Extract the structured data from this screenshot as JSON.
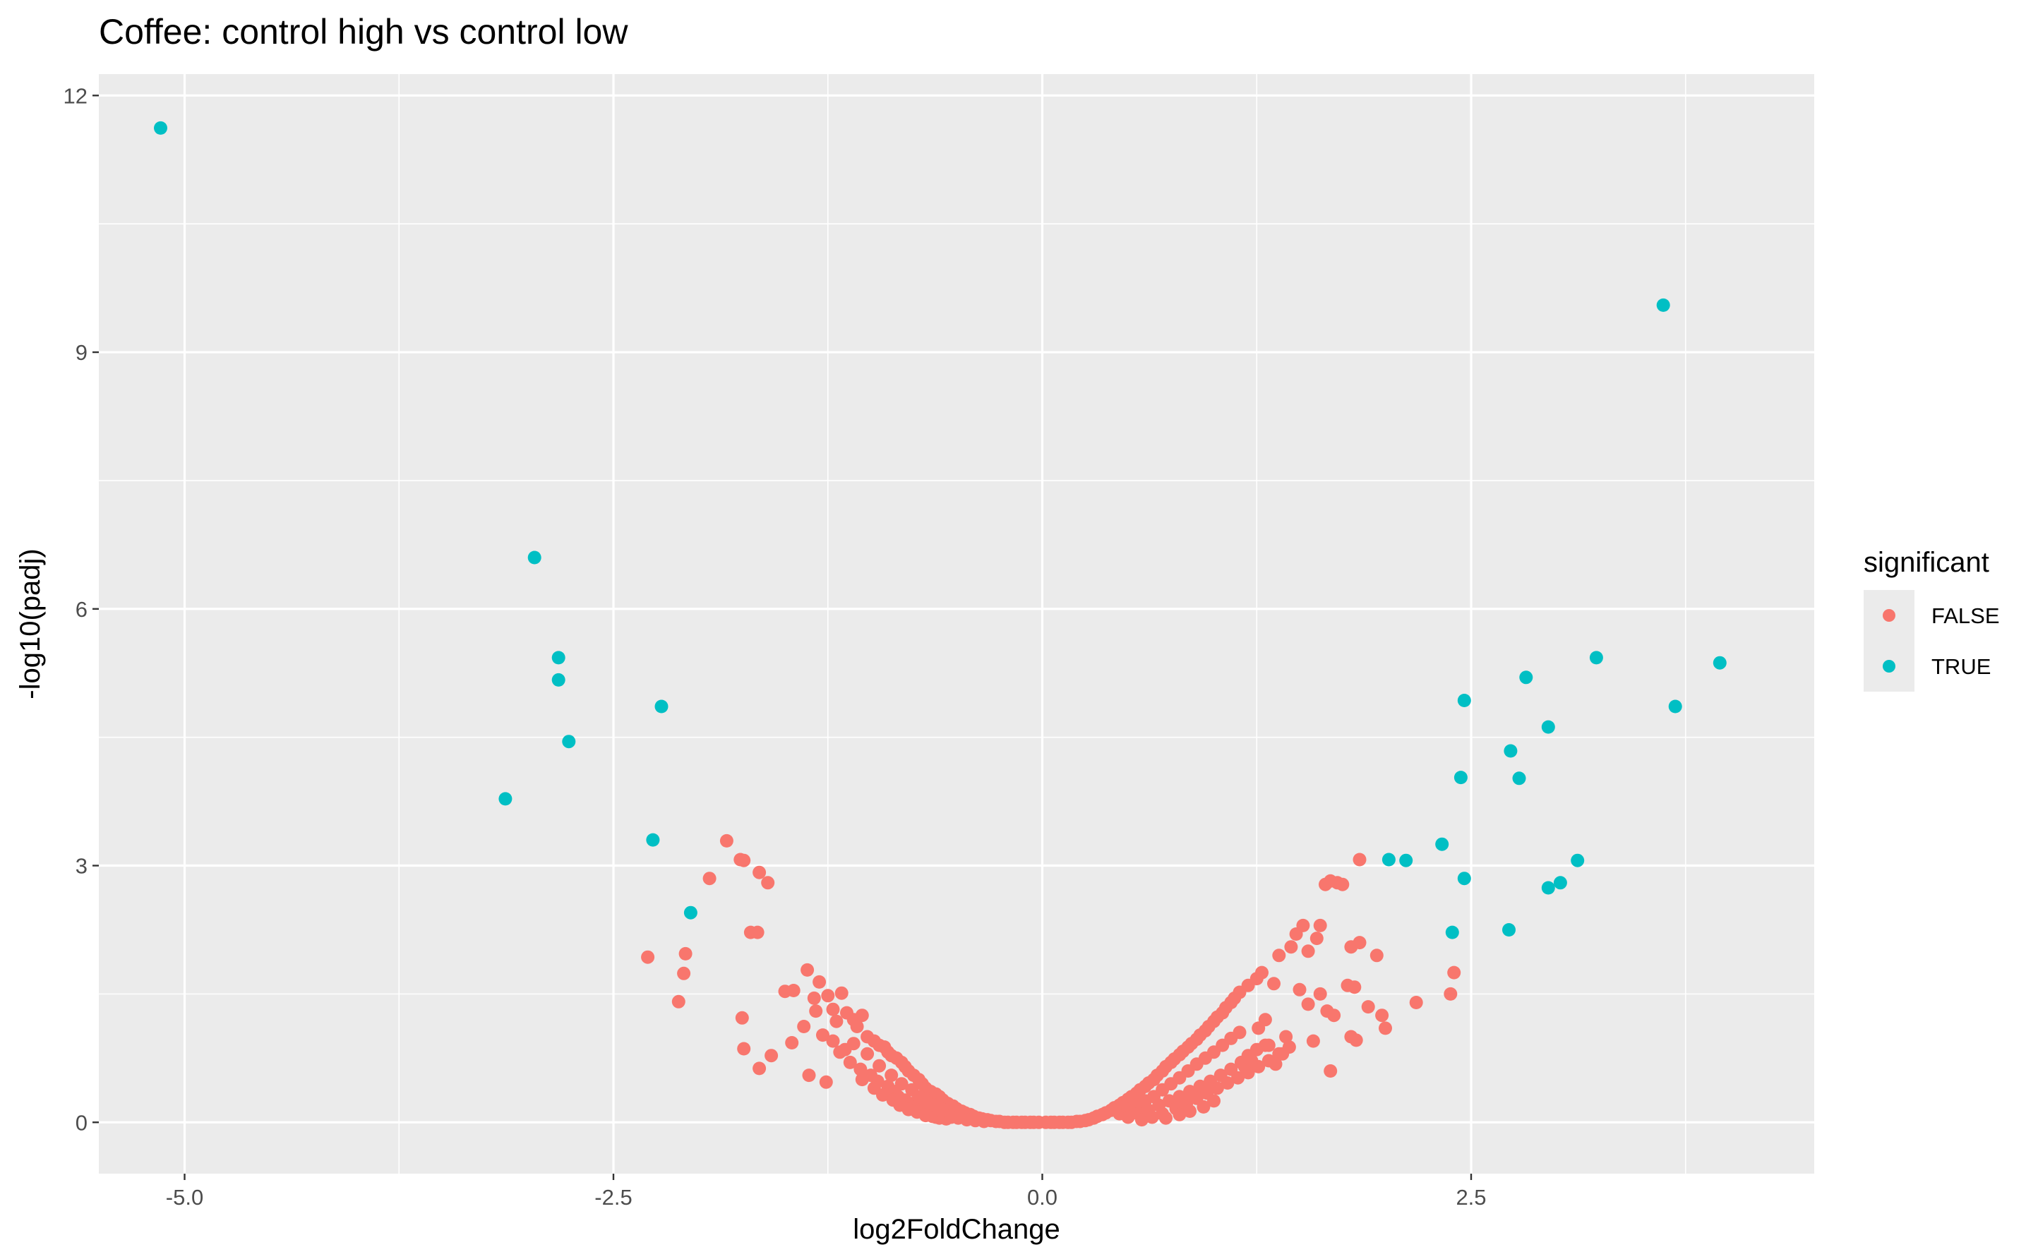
{
  "chart_data": {
    "type": "scatter",
    "title": "Coffee: control high vs control low",
    "xlabel": "log2FoldChange",
    "ylabel": "-log10(padj)",
    "xlim": [
      -5.5,
      4.5
    ],
    "ylim": [
      -0.6,
      12.25
    ],
    "x_ticks": [
      -5.0,
      -2.5,
      0.0,
      2.5
    ],
    "y_ticks": [
      0,
      3,
      6,
      9,
      12
    ],
    "x_tick_labels": [
      "-5.0",
      "-2.5",
      "0.0",
      "2.5"
    ],
    "y_tick_labels": [
      "0",
      "3",
      "6",
      "9",
      "12"
    ],
    "grid": true,
    "panel_background": "#ebebeb",
    "legend": {
      "title": "significant",
      "position": "right",
      "entries": [
        {
          "label": "FALSE",
          "color": "#f8766d"
        },
        {
          "label": "TRUE",
          "color": "#00bfc4"
        }
      ]
    },
    "series": [
      {
        "name": "TRUE",
        "color": "#00bfc4",
        "points": [
          [
            -5.14,
            11.62
          ],
          [
            -2.96,
            6.6
          ],
          [
            -2.82,
            5.43
          ],
          [
            -2.82,
            5.17
          ],
          [
            -2.76,
            4.45
          ],
          [
            -3.13,
            3.78
          ],
          [
            -2.22,
            4.86
          ],
          [
            -2.27,
            3.3
          ],
          [
            -2.05,
            2.45
          ],
          [
            3.62,
            9.55
          ],
          [
            3.95,
            5.37
          ],
          [
            3.23,
            5.43
          ],
          [
            2.82,
            5.2
          ],
          [
            3.69,
            4.86
          ],
          [
            2.46,
            4.93
          ],
          [
            2.95,
            4.62
          ],
          [
            2.73,
            4.34
          ],
          [
            2.44,
            4.03
          ],
          [
            2.78,
            4.02
          ],
          [
            2.33,
            3.25
          ],
          [
            2.02,
            3.07
          ],
          [
            2.12,
            3.06
          ],
          [
            3.12,
            3.06
          ],
          [
            2.46,
            2.85
          ],
          [
            3.02,
            2.8
          ],
          [
            2.95,
            2.74
          ],
          [
            2.39,
            2.22
          ],
          [
            2.72,
            2.25
          ]
        ]
      },
      {
        "name": "FALSE",
        "color": "#f8766d",
        "points": [
          [
            -1.84,
            3.29
          ],
          [
            -1.76,
            3.07
          ],
          [
            -1.74,
            3.06
          ],
          [
            -1.65,
            2.92
          ],
          [
            -1.6,
            2.8
          ],
          [
            -1.94,
            2.85
          ],
          [
            -1.7,
            2.22
          ],
          [
            -1.66,
            2.22
          ],
          [
            -2.08,
            1.97
          ],
          [
            -2.09,
            1.74
          ],
          [
            -2.3,
            1.93
          ],
          [
            -2.12,
            1.41
          ],
          [
            -1.75,
            1.22
          ],
          [
            -1.74,
            0.86
          ],
          [
            -1.65,
            0.63
          ],
          [
            -1.58,
            0.78
          ],
          [
            -1.46,
            0.93
          ],
          [
            -1.5,
            1.53
          ],
          [
            -1.45,
            1.54
          ],
          [
            -1.37,
            1.78
          ],
          [
            -1.3,
            1.64
          ],
          [
            -1.33,
            1.45
          ],
          [
            -1.32,
            1.3
          ],
          [
            -1.39,
            1.12
          ],
          [
            -1.28,
            1.02
          ],
          [
            -1.36,
            0.55
          ],
          [
            -1.26,
            0.47
          ],
          [
            -1.25,
            1.48
          ],
          [
            -1.22,
            1.32
          ],
          [
            -1.2,
            1.18
          ],
          [
            -1.17,
            1.51
          ],
          [
            -1.14,
            1.28
          ],
          [
            -1.1,
            1.2
          ],
          [
            -1.08,
            1.12
          ],
          [
            -1.05,
            1.25
          ],
          [
            -1.02,
            1.0
          ],
          [
            -0.98,
            0.95
          ],
          [
            -0.95,
            0.9
          ],
          [
            -0.92,
            0.88
          ],
          [
            -0.9,
            0.82
          ],
          [
            -0.88,
            0.78
          ],
          [
            -0.85,
            0.75
          ],
          [
            -0.82,
            0.7
          ],
          [
            -0.8,
            0.65
          ],
          [
            -0.78,
            0.6
          ],
          [
            -0.75,
            0.55
          ],
          [
            -0.72,
            0.5
          ],
          [
            -0.7,
            0.45
          ],
          [
            -0.68,
            0.4
          ],
          [
            -0.65,
            0.36
          ],
          [
            -0.62,
            0.33
          ],
          [
            -0.6,
            0.3
          ],
          [
            -0.58,
            0.26
          ],
          [
            -0.55,
            0.22
          ],
          [
            -0.52,
            0.19
          ],
          [
            -0.5,
            0.16
          ],
          [
            -0.47,
            0.13
          ],
          [
            -0.45,
            0.11
          ],
          [
            -0.42,
            0.09
          ],
          [
            -0.4,
            0.07
          ],
          [
            -0.37,
            0.05
          ],
          [
            -0.35,
            0.04
          ],
          [
            -0.32,
            0.03
          ],
          [
            -0.3,
            0.02
          ],
          [
            -0.27,
            0.01
          ],
          [
            -0.25,
            0.01
          ],
          [
            -0.22,
            0.0
          ],
          [
            -0.2,
            0.0
          ],
          [
            -0.17,
            0.0
          ],
          [
            -0.15,
            0.0
          ],
          [
            -0.12,
            0.0
          ],
          [
            -0.1,
            0.0
          ],
          [
            -0.07,
            0.0
          ],
          [
            -0.05,
            0.0
          ],
          [
            -0.02,
            0.0
          ],
          [
            -1.18,
            0.82
          ],
          [
            -1.12,
            0.7
          ],
          [
            -1.06,
            0.62
          ],
          [
            -1.0,
            0.55
          ],
          [
            -0.96,
            0.48
          ],
          [
            -0.9,
            0.42
          ],
          [
            -0.86,
            0.36
          ],
          [
            -0.84,
            0.3
          ],
          [
            -0.8,
            0.26
          ],
          [
            -0.76,
            0.22
          ],
          [
            -0.74,
            0.18
          ],
          [
            -0.7,
            0.14
          ],
          [
            -0.66,
            0.1
          ],
          [
            -0.64,
            0.07
          ],
          [
            -0.6,
            0.05
          ],
          [
            -0.56,
            0.04
          ],
          [
            -1.22,
            0.95
          ],
          [
            -1.15,
            0.85
          ],
          [
            -1.1,
            0.92
          ],
          [
            -1.02,
            0.8
          ],
          [
            -0.95,
            0.66
          ],
          [
            -0.88,
            0.55
          ],
          [
            -0.82,
            0.45
          ],
          [
            -0.76,
            0.38
          ],
          [
            -0.72,
            0.3
          ],
          [
            -0.68,
            0.24
          ],
          [
            -0.63,
            0.2
          ],
          [
            -0.58,
            0.15
          ],
          [
            -0.54,
            0.12
          ],
          [
            -0.48,
            0.08
          ],
          [
            -1.05,
            0.5
          ],
          [
            -0.98,
            0.4
          ],
          [
            -0.93,
            0.32
          ],
          [
            -0.87,
            0.26
          ],
          [
            -0.83,
            0.2
          ],
          [
            -0.78,
            0.15
          ],
          [
            -0.73,
            0.12
          ],
          [
            -0.68,
            0.08
          ],
          [
            -0.62,
            0.06
          ],
          [
            -0.57,
            0.08
          ],
          [
            -0.53,
            0.06
          ],
          [
            -0.49,
            0.05
          ],
          [
            -0.44,
            0.03
          ],
          [
            -0.39,
            0.02
          ],
          [
            -0.34,
            0.01
          ],
          [
            0.02,
            0.0
          ],
          [
            0.05,
            0.0
          ],
          [
            0.07,
            0.0
          ],
          [
            0.1,
            0.0
          ],
          [
            0.12,
            0.0
          ],
          [
            0.15,
            0.0
          ],
          [
            0.17,
            0.0
          ],
          [
            0.2,
            0.01
          ],
          [
            0.22,
            0.01
          ],
          [
            0.25,
            0.02
          ],
          [
            0.27,
            0.03
          ],
          [
            0.3,
            0.05
          ],
          [
            0.32,
            0.07
          ],
          [
            0.35,
            0.09
          ],
          [
            0.37,
            0.11
          ],
          [
            0.4,
            0.14
          ],
          [
            0.42,
            0.17
          ],
          [
            0.45,
            0.2
          ],
          [
            0.47,
            0.23
          ],
          [
            0.5,
            0.27
          ],
          [
            0.52,
            0.3
          ],
          [
            0.55,
            0.34
          ],
          [
            0.57,
            0.38
          ],
          [
            0.6,
            0.42
          ],
          [
            0.62,
            0.46
          ],
          [
            0.65,
            0.5
          ],
          [
            0.67,
            0.55
          ],
          [
            0.7,
            0.6
          ],
          [
            0.72,
            0.65
          ],
          [
            0.75,
            0.7
          ],
          [
            0.77,
            0.74
          ],
          [
            0.8,
            0.79
          ],
          [
            0.82,
            0.83
          ],
          [
            0.85,
            0.88
          ],
          [
            0.87,
            0.92
          ],
          [
            0.9,
            0.97
          ],
          [
            0.92,
            1.02
          ],
          [
            0.95,
            1.07
          ],
          [
            0.97,
            1.12
          ],
          [
            1.0,
            1.18
          ],
          [
            1.02,
            1.23
          ],
          [
            1.05,
            1.28
          ],
          [
            1.07,
            1.34
          ],
          [
            1.1,
            1.4
          ],
          [
            1.12,
            1.45
          ],
          [
            0.45,
            0.1
          ],
          [
            0.5,
            0.15
          ],
          [
            0.55,
            0.2
          ],
          [
            0.6,
            0.25
          ],
          [
            0.65,
            0.3
          ],
          [
            0.7,
            0.38
          ],
          [
            0.75,
            0.45
          ],
          [
            0.8,
            0.52
          ],
          [
            0.85,
            0.6
          ],
          [
            0.9,
            0.68
          ],
          [
            0.95,
            0.75
          ],
          [
            1.0,
            0.82
          ],
          [
            1.05,
            0.9
          ],
          [
            1.1,
            0.98
          ],
          [
            1.15,
            1.05
          ],
          [
            0.5,
            0.06
          ],
          [
            0.56,
            0.1
          ],
          [
            0.62,
            0.14
          ],
          [
            0.68,
            0.2
          ],
          [
            0.74,
            0.25
          ],
          [
            0.8,
            0.3
          ],
          [
            0.86,
            0.36
          ],
          [
            0.92,
            0.42
          ],
          [
            0.98,
            0.48
          ],
          [
            1.04,
            0.55
          ],
          [
            1.1,
            0.62
          ],
          [
            1.16,
            0.7
          ],
          [
            1.2,
            0.78
          ],
          [
            1.25,
            0.85
          ],
          [
            1.3,
            0.9
          ],
          [
            0.58,
            0.03
          ],
          [
            0.64,
            0.06
          ],
          [
            0.7,
            0.1
          ],
          [
            0.78,
            0.16
          ],
          [
            0.84,
            0.22
          ],
          [
            0.9,
            0.28
          ],
          [
            0.96,
            0.34
          ],
          [
            1.02,
            0.4
          ],
          [
            1.08,
            0.46
          ],
          [
            1.14,
            0.52
          ],
          [
            1.2,
            0.58
          ],
          [
            1.26,
            0.65
          ],
          [
            1.32,
            0.72
          ],
          [
            1.38,
            0.8
          ],
          [
            1.44,
            0.88
          ],
          [
            0.72,
            0.05
          ],
          [
            0.8,
            0.09
          ],
          [
            0.86,
            0.13
          ],
          [
            0.94,
            0.18
          ],
          [
            1.0,
            0.25
          ],
          [
            1.15,
            1.52
          ],
          [
            1.2,
            1.6
          ],
          [
            1.25,
            1.68
          ],
          [
            1.28,
            1.75
          ],
          [
            1.35,
            1.62
          ],
          [
            1.38,
            1.95
          ],
          [
            1.45,
            2.05
          ],
          [
            1.48,
            2.2
          ],
          [
            1.52,
            2.3
          ],
          [
            1.55,
            2.0
          ],
          [
            1.6,
            2.15
          ],
          [
            1.62,
            2.3
          ],
          [
            1.65,
            2.78
          ],
          [
            1.68,
            2.82
          ],
          [
            1.72,
            2.8
          ],
          [
            1.75,
            2.78
          ],
          [
            1.85,
            3.07
          ],
          [
            1.8,
            2.05
          ],
          [
            1.85,
            2.1
          ],
          [
            1.95,
            1.95
          ],
          [
            1.78,
            1.6
          ],
          [
            1.82,
            1.58
          ],
          [
            1.9,
            1.35
          ],
          [
            1.98,
            1.25
          ],
          [
            2.0,
            1.1
          ],
          [
            1.8,
            1.0
          ],
          [
            1.83,
            0.96
          ],
          [
            1.68,
            0.6
          ],
          [
            1.58,
            0.95
          ],
          [
            1.42,
            1.0
          ],
          [
            1.3,
            1.2
          ],
          [
            1.4,
            0.8
          ],
          [
            1.5,
            1.55
          ],
          [
            1.55,
            1.38
          ],
          [
            1.62,
            1.5
          ],
          [
            1.66,
            1.3
          ],
          [
            1.7,
            1.25
          ],
          [
            2.18,
            1.4
          ],
          [
            2.38,
            1.5
          ],
          [
            2.4,
            1.75
          ],
          [
            1.18,
            0.65
          ],
          [
            1.22,
            0.72
          ],
          [
            1.36,
            0.68
          ],
          [
            1.26,
            1.1
          ],
          [
            1.32,
            0.9
          ]
        ]
      }
    ]
  }
}
